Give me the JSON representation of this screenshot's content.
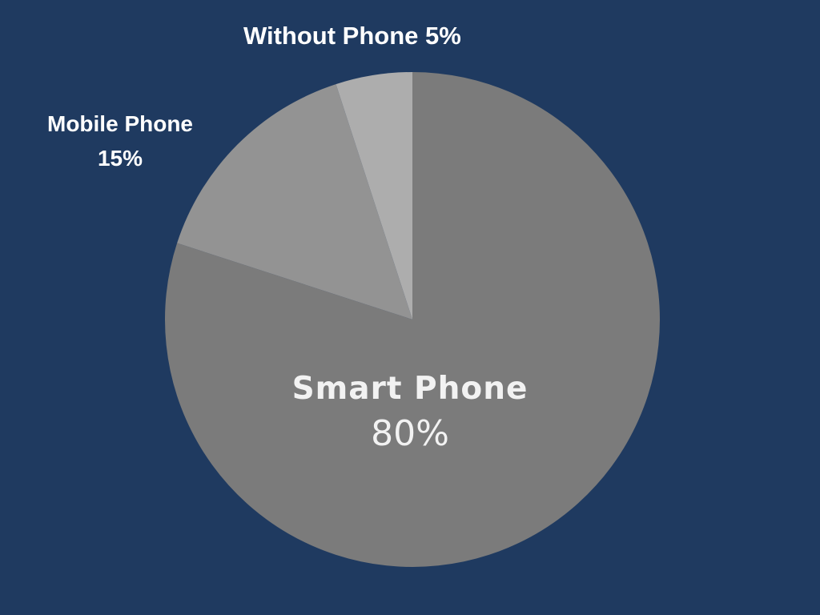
{
  "chart_data": {
    "type": "pie",
    "title": "",
    "categories": [
      "Smart Phone",
      "Mobile Phone",
      "Without Phone"
    ],
    "values": [
      80,
      15,
      5
    ],
    "percent_labels": [
      "80%",
      "15%",
      "5%"
    ],
    "colors": [
      "#7b7b7b",
      "#939393",
      "#adadad"
    ],
    "background": "#1f3a60",
    "label_color": "#ffffff"
  }
}
